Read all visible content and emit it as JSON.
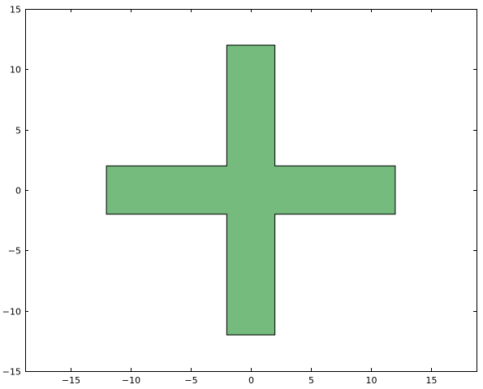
{
  "chart_data": {
    "type": "polygon",
    "title": "",
    "xlabel": "",
    "ylabel": "",
    "xlim": [
      -18.75,
      18.75
    ],
    "ylim": [
      -15,
      15
    ],
    "x_ticks": [
      -15,
      -10,
      -5,
      0,
      5,
      10,
      15
    ],
    "y_ticks": [
      -15,
      -10,
      -5,
      0,
      5,
      10,
      15
    ],
    "x_tick_labels": [
      "−15",
      "−10",
      "−5",
      "0",
      "5",
      "10",
      "15"
    ],
    "y_tick_labels": [
      "−15",
      "−10",
      "−5",
      "0",
      "5",
      "10",
      "15"
    ],
    "grid": false,
    "legend": "none",
    "shape": {
      "fill_color": "#74bb7d",
      "edge_color": "#000000",
      "vertices": [
        [
          -2,
          12
        ],
        [
          2,
          12
        ],
        [
          2,
          2
        ],
        [
          12,
          2
        ],
        [
          12,
          -2
        ],
        [
          2,
          -2
        ],
        [
          2,
          -12
        ],
        [
          -2,
          -12
        ],
        [
          -2,
          -2
        ],
        [
          -12,
          -2
        ],
        [
          -12,
          2
        ],
        [
          -2,
          2
        ]
      ]
    }
  }
}
